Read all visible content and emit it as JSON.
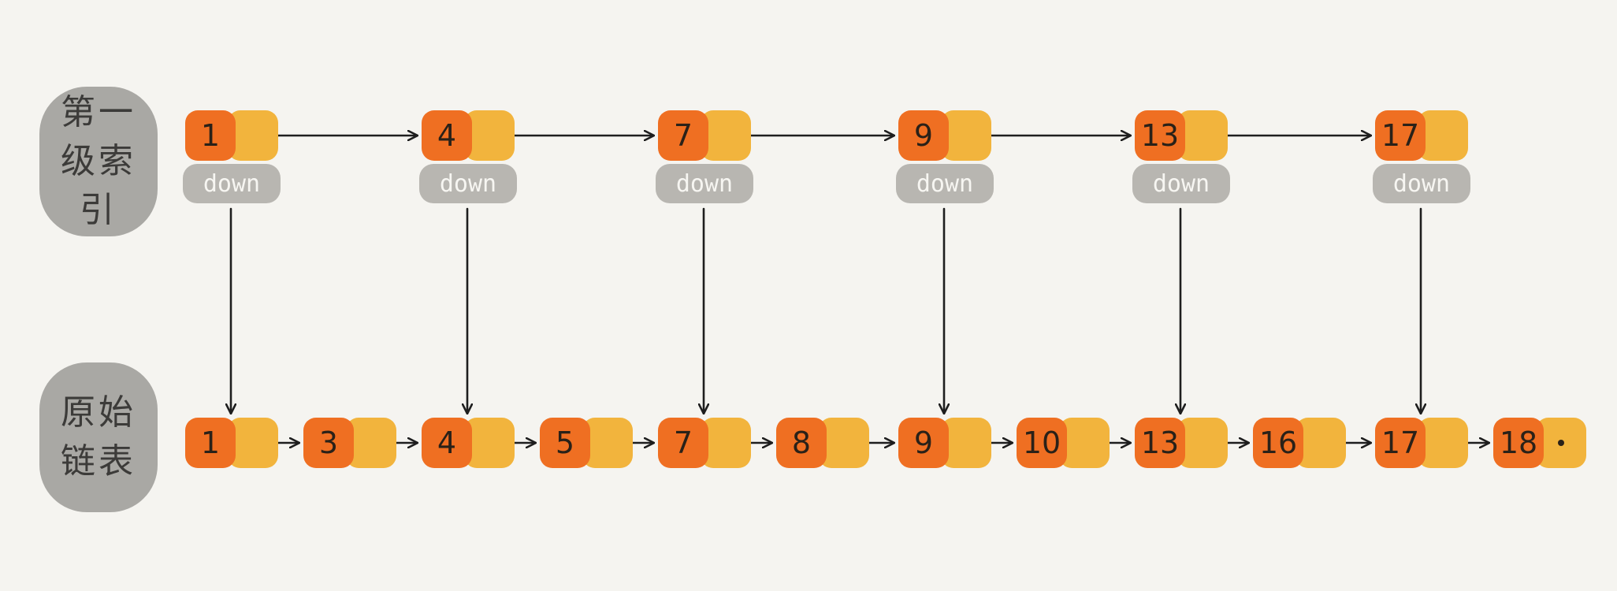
{
  "labels": {
    "index_level": "第一级索引",
    "original_list": "原始链表"
  },
  "down_label": "down",
  "index_nodes": [
    "1",
    "4",
    "7",
    "9",
    "13",
    "17"
  ],
  "list_nodes": [
    "1",
    "3",
    "4",
    "5",
    "7",
    "8",
    "9",
    "10",
    "13",
    "16",
    "17",
    "18"
  ],
  "colors": {
    "key": "#ef6f22",
    "pointer": "#f2b43d",
    "tag": "#b8b6b1",
    "label_bg": "#a9a8a4",
    "arrow": "#1e1e1e"
  }
}
